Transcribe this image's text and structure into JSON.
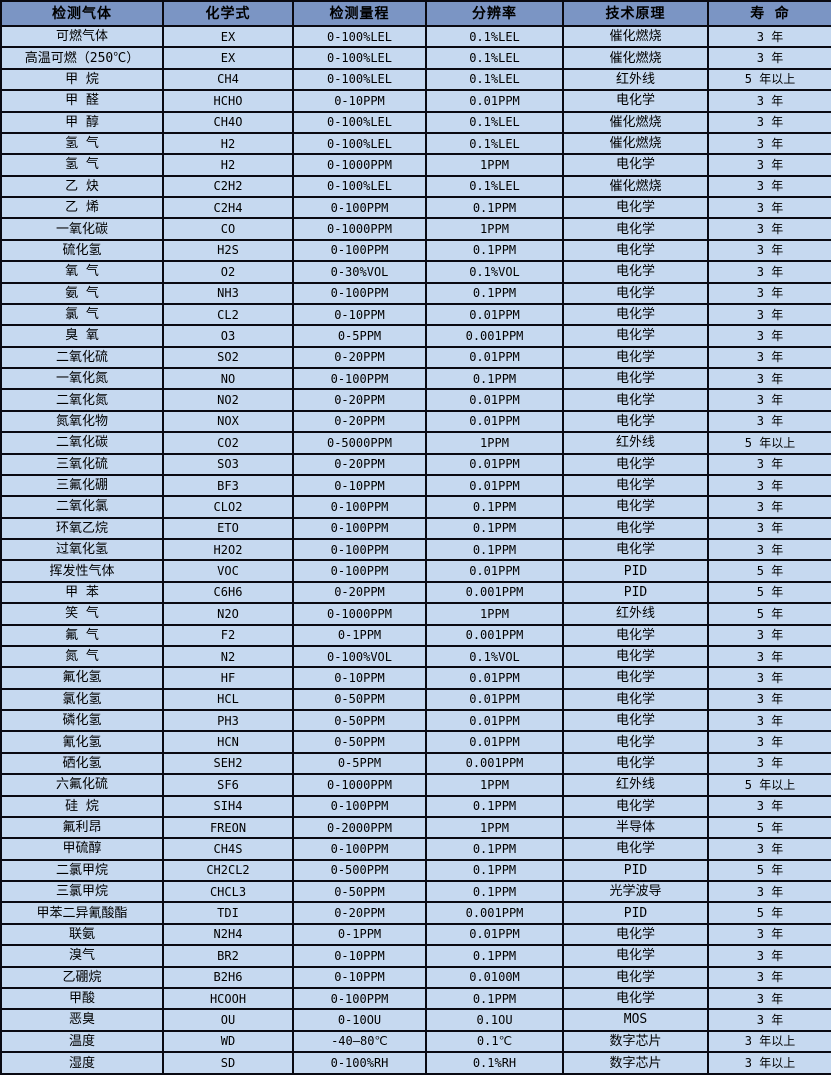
{
  "colors": {
    "header_bg": "#7b95c4",
    "row_bg": "#c6d9f0",
    "border": "#0a0a12",
    "text": "#000000"
  },
  "table": {
    "columns": [
      {
        "key": "gas",
        "label": "检测气体"
      },
      {
        "key": "formula",
        "label": "化学式"
      },
      {
        "key": "range",
        "label": "检测量程"
      },
      {
        "key": "resolution",
        "label": "分辨率"
      },
      {
        "key": "principle",
        "label": "技术原理"
      },
      {
        "key": "lifespan",
        "label": "寿 命"
      }
    ],
    "rows": [
      [
        "可燃气体",
        "EX",
        "0-100%LEL",
        "0.1%LEL",
        "催化燃烧",
        "3 年"
      ],
      [
        "高温可燃（250℃）",
        "EX",
        "0-100%LEL",
        "0.1%LEL",
        "催化燃烧",
        "3 年"
      ],
      [
        "甲 烷",
        "CH4",
        "0-100%LEL",
        "0.1%LEL",
        "红外线",
        "5 年以上"
      ],
      [
        "甲 醛",
        "HCHO",
        "0-10PPM",
        "0.01PPM",
        "电化学",
        "3 年"
      ],
      [
        "甲 醇",
        "CH4O",
        "0-100%LEL",
        "0.1%LEL",
        "催化燃烧",
        "3 年"
      ],
      [
        "氢 气",
        "H2",
        "0-100%LEL",
        "0.1%LEL",
        "催化燃烧",
        "3 年"
      ],
      [
        "氢 气",
        "H2",
        "0-1000PPM",
        "1PPM",
        "电化学",
        "3 年"
      ],
      [
        "乙 炔",
        "C2H2",
        "0-100%LEL",
        "0.1%LEL",
        "催化燃烧",
        "3 年"
      ],
      [
        "乙 烯",
        "C2H4",
        "0-100PPM",
        "0.1PPM",
        "电化学",
        "3 年"
      ],
      [
        "一氧化碳",
        "CO",
        "0-1000PPM",
        "1PPM",
        "电化学",
        "3 年"
      ],
      [
        "硫化氢",
        "H2S",
        "0-100PPM",
        "0.1PPM",
        "电化学",
        "3 年"
      ],
      [
        "氧 气",
        "O2",
        "0-30%VOL",
        "0.1%VOL",
        "电化学",
        "3 年"
      ],
      [
        "氨 气",
        "NH3",
        "0-100PPM",
        "0.1PPM",
        "电化学",
        "3 年"
      ],
      [
        "氯 气",
        "CL2",
        "0-10PPM",
        "0.01PPM",
        "电化学",
        "3 年"
      ],
      [
        "臭 氧",
        "O3",
        "0-5PPM",
        "0.001PPM",
        "电化学",
        "3 年"
      ],
      [
        "二氧化硫",
        "SO2",
        "0-20PPM",
        "0.01PPM",
        "电化学",
        "3 年"
      ],
      [
        "一氧化氮",
        "NO",
        "0-100PPM",
        "0.1PPM",
        "电化学",
        "3 年"
      ],
      [
        "二氧化氮",
        "NO2",
        "0-20PPM",
        "0.01PPM",
        "电化学",
        "3 年"
      ],
      [
        "氮氧化物",
        "NOX",
        "0-20PPM",
        "0.01PPM",
        "电化学",
        "3 年"
      ],
      [
        "二氧化碳",
        "CO2",
        "0-5000PPM",
        "1PPM",
        "红外线",
        "5 年以上"
      ],
      [
        "三氧化硫",
        "SO3",
        "0-20PPM",
        "0.01PPM",
        "电化学",
        "3 年"
      ],
      [
        "三氟化硼",
        "BF3",
        "0-10PPM",
        "0.01PPM",
        "电化学",
        "3 年"
      ],
      [
        "二氧化氯",
        "CLO2",
        "0-100PPM",
        "0.1PPM",
        "电化学",
        "3 年"
      ],
      [
        "环氧乙烷",
        "ETO",
        "0-100PPM",
        "0.1PPM",
        "电化学",
        "3 年"
      ],
      [
        "过氧化氢",
        "H2O2",
        "0-100PPM",
        "0.1PPM",
        "电化学",
        "3 年"
      ],
      [
        "挥发性气体",
        "VOC",
        "0-100PPM",
        "0.01PPM",
        "PID",
        "5 年"
      ],
      [
        "甲 苯",
        "C6H6",
        "0-20PPM",
        "0.001PPM",
        "PID",
        "5 年"
      ],
      [
        "笑 气",
        "N2O",
        "0-1000PPM",
        "1PPM",
        "红外线",
        "5 年"
      ],
      [
        "氟 气",
        "F2",
        "0-1PPM",
        "0.001PPM",
        "电化学",
        "3 年"
      ],
      [
        "氮 气",
        "N2",
        "0-100%VOL",
        "0.1%VOL",
        "电化学",
        "3 年"
      ],
      [
        "氟化氢",
        "HF",
        "0-10PPM",
        "0.01PPM",
        "电化学",
        "3 年"
      ],
      [
        "氯化氢",
        "HCL",
        "0-50PPM",
        "0.01PPM",
        "电化学",
        "3 年"
      ],
      [
        "磷化氢",
        "PH3",
        "0-50PPM",
        "0.01PPM",
        "电化学",
        "3 年"
      ],
      [
        "氰化氢",
        "HCN",
        "0-50PPM",
        "0.01PPM",
        "电化学",
        "3 年"
      ],
      [
        "硒化氢",
        "SEH2",
        "0-5PPM",
        "0.001PPM",
        "电化学",
        "3 年"
      ],
      [
        "六氟化硫",
        "SF6",
        "0-1000PPM",
        "1PPM",
        "红外线",
        "5 年以上"
      ],
      [
        "硅 烷",
        "SIH4",
        "0-100PPM",
        "0.1PPM",
        "电化学",
        "3 年"
      ],
      [
        "氟利昂",
        "FREON",
        "0-2000PPM",
        "1PPM",
        "半导体",
        "5 年"
      ],
      [
        "甲硫醇",
        "CH4S",
        "0-100PPM",
        "0.1PPM",
        "电化学",
        "3 年"
      ],
      [
        "二氯甲烷",
        "CH2CL2",
        "0-500PPM",
        "0.1PPM",
        "PID",
        "5 年"
      ],
      [
        "三氯甲烷",
        "CHCL3",
        "0-50PPM",
        "0.1PPM",
        "光学波导",
        "3 年"
      ],
      [
        "甲苯二异氰酸酯",
        "TDI",
        "0-20PPM",
        "0.001PPM",
        "PID",
        "5 年"
      ],
      [
        "联氨",
        "N2H4",
        "0-1PPM",
        "0.01PPM",
        "电化学",
        "3 年"
      ],
      [
        "溴气",
        "BR2",
        "0-10PPM",
        "0.1PPM",
        "电化学",
        "3 年"
      ],
      [
        "乙硼烷",
        "B2H6",
        "0-10PPM",
        "0.0100M",
        "电化学",
        "3 年"
      ],
      [
        "甲酸",
        "HCOOH",
        "0-100PPM",
        "0.1PPM",
        "电化学",
        "3 年"
      ],
      [
        "恶臭",
        "OU",
        "0-10OU",
        "0.1OU",
        "MOS",
        "3 年"
      ],
      [
        "温度",
        "WD",
        "-40—80℃",
        "0.1℃",
        "数字芯片",
        "3 年以上"
      ],
      [
        "湿度",
        "SD",
        "0-100%RH",
        "0.1%RH",
        "数字芯片",
        "3 年以上"
      ]
    ]
  }
}
